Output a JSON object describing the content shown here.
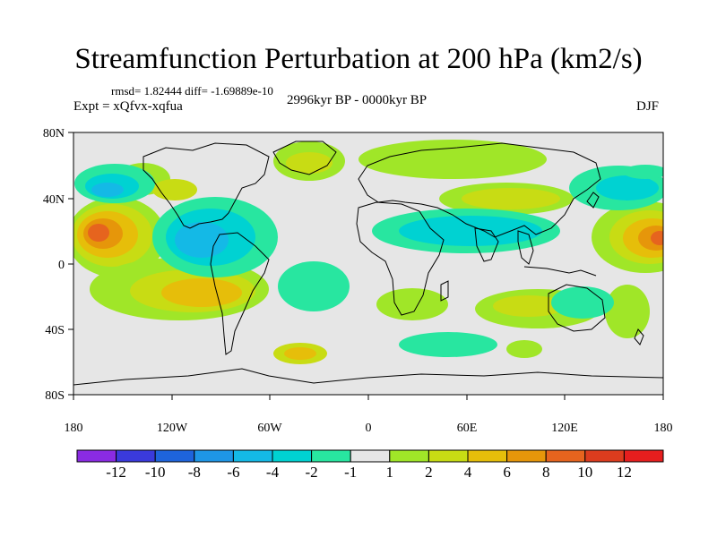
{
  "header": {
    "title": "Streamfunction Perturbation at 200 hPa (km2/s)",
    "stats": "rmsd= 1.82444 diff= -1.69889e-10",
    "experiment": "Expt = xQfvx-xqfua",
    "period": "2996kyr BP - 0000kyr BP",
    "season": "DJF"
  },
  "axes": {
    "lat_labels": [
      "80N",
      "40N",
      "0",
      "40S",
      "80S"
    ],
    "lon_labels": [
      "180",
      "120W",
      "60W",
      "0",
      "60E",
      "120E",
      "180"
    ]
  },
  "colorbar": {
    "labels": [
      "-12",
      "-10",
      "-8",
      "-6",
      "-4",
      "-2",
      "-1",
      "1",
      "2",
      "4",
      "6",
      "8",
      "10",
      "12"
    ],
    "colors": [
      "#8a2be2",
      "#3a3adc",
      "#1e64dc",
      "#1e96e6",
      "#14b9e6",
      "#00d2d2",
      "#28e6a0",
      "#e6e6e6",
      "#a0e628",
      "#c8dc14",
      "#e6be0a",
      "#e6960a",
      "#e6641e",
      "#dc3c1e",
      "#e61e1e"
    ]
  },
  "colors": {
    "map_background": "#e6e6e6",
    "coastline": "#000000"
  }
}
